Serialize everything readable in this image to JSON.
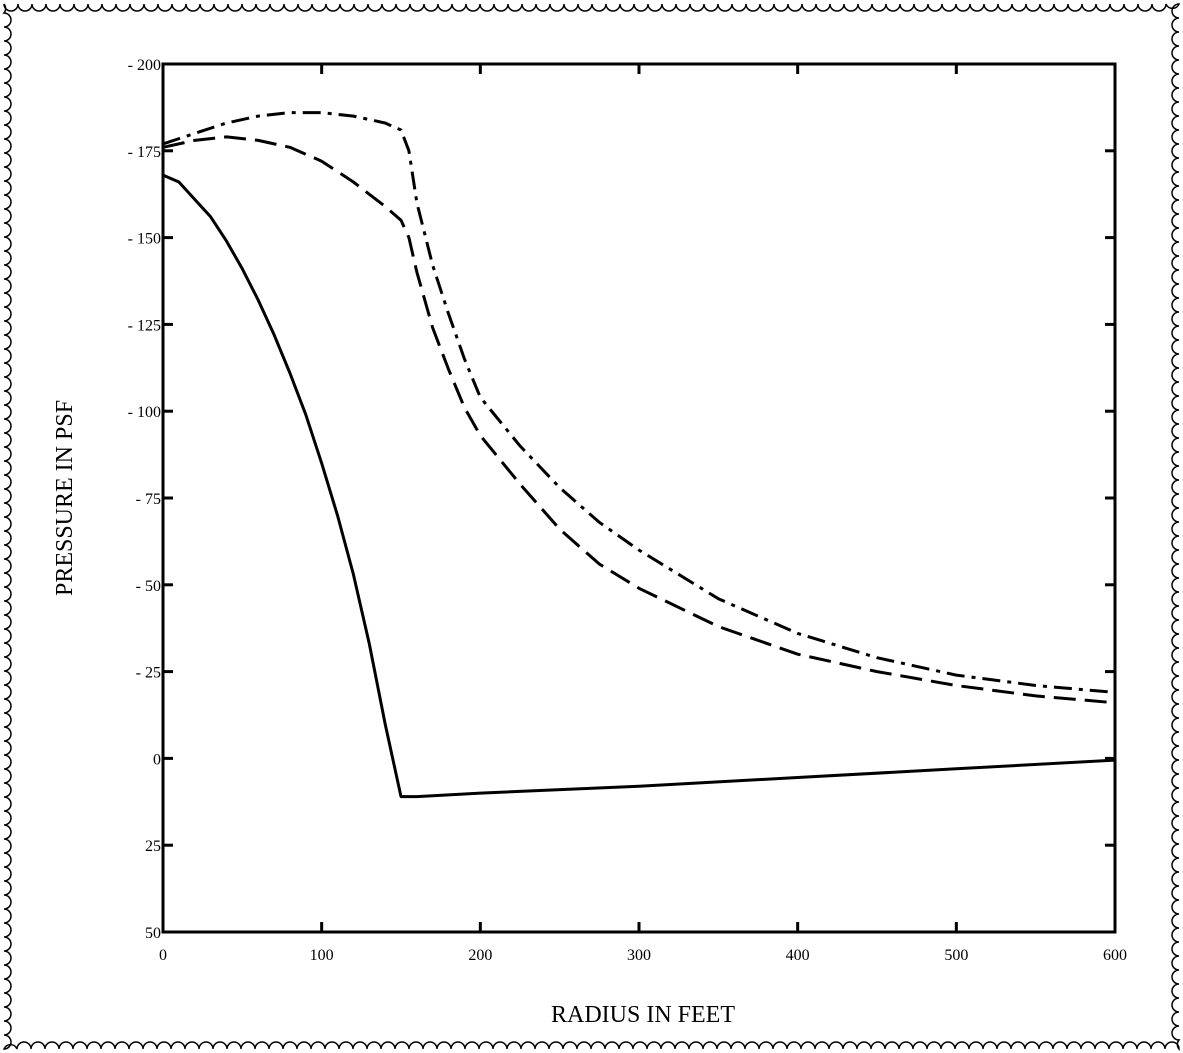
{
  "chart_data": {
    "type": "line",
    "title": "",
    "xlabel": "RADIUS IN FEET",
    "ylabel": "PRESSURE IN PSF",
    "xlim": [
      0,
      600
    ],
    "ylim": [
      50,
      -200
    ],
    "y_axis_inverted": true,
    "grid": false,
    "legend": "none",
    "xticks": [
      0,
      100,
      200,
      300,
      400,
      500,
      600
    ],
    "xtick_labels": [
      "0",
      "100",
      "200",
      "300",
      "400",
      "500",
      "600"
    ],
    "yticks": [
      -200,
      -175,
      -150,
      -125,
      -100,
      -75,
      -50,
      -25,
      0,
      25,
      50
    ],
    "ytick_labels": [
      "- 200",
      "- 175",
      "- 150",
      "- 125",
      "- 100",
      "- 75",
      "- 50",
      "- 25",
      "0",
      "25",
      "50"
    ],
    "series": [
      {
        "style": "solid",
        "x": [
          0,
          10,
          20,
          30,
          40,
          50,
          60,
          70,
          80,
          90,
          100,
          110,
          120,
          130,
          140,
          150,
          160,
          200,
          300,
          400,
          500,
          600
        ],
        "y": [
          -168,
          -166,
          -161,
          -156,
          -149,
          -141,
          -132,
          -122,
          -111,
          -99,
          -85,
          -70,
          -53,
          -33,
          -10,
          11,
          11,
          10,
          8,
          5.5,
          3,
          0.5
        ]
      },
      {
        "style": "dashed",
        "x": [
          0,
          20,
          40,
          60,
          80,
          100,
          120,
          140,
          150,
          155,
          160,
          170,
          180,
          190,
          200,
          225,
          250,
          275,
          300,
          350,
          400,
          450,
          500,
          550,
          600
        ],
        "y": [
          -176,
          -178,
          -179,
          -178,
          -176,
          -172,
          -166,
          -159,
          -155,
          -150,
          -140,
          -124,
          -112,
          -101,
          -93,
          -79,
          -66,
          -56,
          -49,
          -38,
          -30,
          -25,
          -21,
          -18,
          -16
        ]
      },
      {
        "style": "dash-dot",
        "x": [
          0,
          20,
          40,
          60,
          80,
          100,
          120,
          140,
          150,
          155,
          160,
          170,
          180,
          190,
          200,
          225,
          250,
          275,
          300,
          350,
          400,
          450,
          500,
          550,
          600
        ],
        "y": [
          -177,
          -180,
          -183,
          -185,
          -186,
          -186,
          -185,
          -183,
          -181,
          -175,
          -160,
          -142,
          -128,
          -115,
          -104,
          -90,
          -78,
          -68,
          -60,
          -46,
          -36,
          -29,
          -24,
          -21,
          -19
        ]
      }
    ]
  }
}
